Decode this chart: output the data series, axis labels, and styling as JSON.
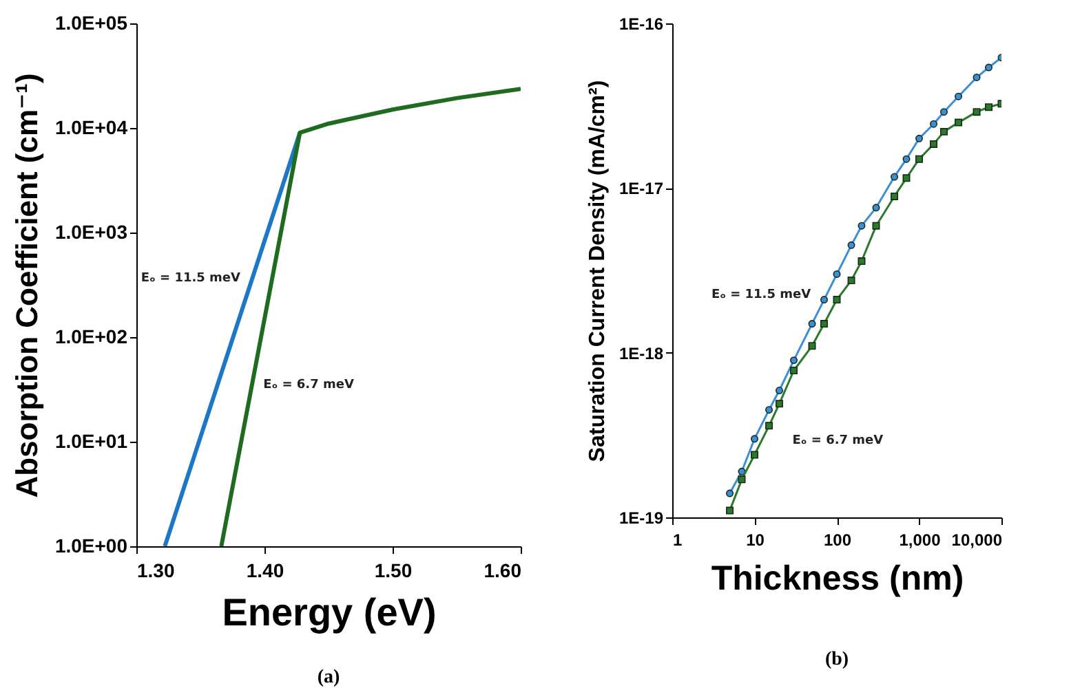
{
  "chart_data": [
    {
      "type": "line",
      "xlabel": "Energy (eV)",
      "ylabel": "Absorption Coefficient (cm⁻¹)",
      "log": "y",
      "xlim": [
        1.3,
        1.6
      ],
      "xticks": [
        {
          "value": 1.3,
          "label": "1.30"
        },
        {
          "value": 1.4,
          "label": "1.40"
        },
        {
          "value": 1.5,
          "label": "1.50"
        },
        {
          "value": 1.6,
          "label": "1.60"
        }
      ],
      "ylim": [
        1,
        100000
      ],
      "yticks": [
        {
          "value": 1,
          "label": "1.0E+00"
        },
        {
          "value": 10,
          "label": "1.0E+01"
        },
        {
          "value": 100,
          "label": "1.0E+02"
        },
        {
          "value": 1000,
          "label": "1.0E+03"
        },
        {
          "value": 10000,
          "label": "1.0E+04"
        },
        {
          "value": 100000,
          "label": "1.0E+05"
        }
      ],
      "grid": false,
      "marker": "none",
      "annotations": [
        "(a)"
      ],
      "series": [
        {
          "name": "Eₒ = 11.5 meV",
          "color": "#1c78c6",
          "x": [
            1.3222,
            1.4276
          ],
          "values": [
            1,
            9000
          ]
        },
        {
          "name": "Eₒ = 6.7 meV",
          "color": "#1f6b1f",
          "x": [
            1.3663,
            1.4276,
            1.45,
            1.5,
            1.55,
            1.6
          ],
          "values": [
            1,
            9000,
            11000,
            15000,
            19300,
            23600
          ]
        }
      ]
    },
    {
      "type": "line",
      "xlabel": "Thickness (nm)",
      "ylabel": "Saturation Current Density (mA/cm²)",
      "log": "xy",
      "xlim": [
        1,
        10000
      ],
      "xticks": [
        1,
        10,
        100,
        {
          "value": 1000,
          "label": "1,000"
        },
        {
          "value": 10000,
          "label": "10,000"
        }
      ],
      "ylim": [
        1e-19,
        1e-16
      ],
      "yticks": [
        {
          "value": 1e-19,
          "label": "1E-19"
        },
        {
          "value": 1e-18,
          "label": "1E-18"
        },
        {
          "value": 1e-17,
          "label": "1E-17"
        },
        {
          "value": 1e-16,
          "label": "1E-16"
        }
      ],
      "grid": false,
      "annotations": [
        "(b)"
      ],
      "series": [
        {
          "name": "Eₒ = 11.5 meV",
          "color": "#3a8fd6",
          "marker": "circle",
          "x": [
            5,
            7,
            10,
            15,
            20,
            30,
            50,
            70,
            100,
            150,
            200,
            300,
            500,
            700,
            1000,
            1500,
            2000,
            3000,
            5000,
            7000,
            10000
          ],
          "values": [
            1.4e-19,
            1.9e-19,
            3e-19,
            4.5e-19,
            5.9e-19,
            9e-19,
            1.5e-18,
            2.1e-18,
            3e-18,
            4.5e-18,
            5.9e-18,
            7.6e-18,
            1.17e-17,
            1.5e-17,
            2e-17,
            2.45e-17,
            2.9e-17,
            3.6e-17,
            4.7e-17,
            5.4e-17,
            6.2e-17
          ]
        },
        {
          "name": "Eₒ = 6.7 meV",
          "color": "#2a7a2a",
          "marker": "square",
          "x": [
            5,
            7,
            10,
            15,
            20,
            30,
            50,
            70,
            100,
            150,
            200,
            300,
            500,
            700,
            1000,
            1500,
            2000,
            3000,
            5000,
            7000,
            10000
          ],
          "values": [
            1.1e-19,
            1.7e-19,
            2.4e-19,
            3.6e-19,
            4.9e-19,
            7.8e-19,
            1.1e-18,
            1.5e-18,
            2.1e-18,
            2.75e-18,
            3.6e-18,
            5.9e-18,
            8.9e-18,
            1.15e-17,
            1.5e-17,
            1.85e-17,
            2.2e-17,
            2.5e-17,
            2.9e-17,
            3.1e-17,
            3.25e-17
          ]
        }
      ]
    }
  ]
}
